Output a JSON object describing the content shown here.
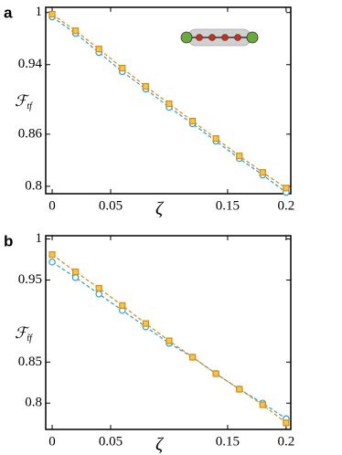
{
  "chart_data": [
    {
      "type": "line",
      "panel_label": "a",
      "ylabel": "ℱ",
      "ylabel_subscript": "tf",
      "xlabel": "ζ",
      "x": [
        0,
        0.02,
        0.04,
        0.06,
        0.08,
        0.1,
        0.12,
        0.14,
        0.16,
        0.18,
        0.2
      ],
      "series": [
        {
          "color": "#2a9fd6",
          "marker": "circle",
          "values": [
            0.995,
            0.976,
            0.954,
            0.932,
            0.912,
            0.891,
            0.872,
            0.852,
            0.832,
            0.813,
            0.793
          ]
        },
        {
          "color": "#d98c0c",
          "marker": "square",
          "values": [
            0.998,
            0.979,
            0.958,
            0.936,
            0.915,
            0.895,
            0.875,
            0.855,
            0.835,
            0.816,
            0.798
          ]
        }
      ],
      "xlim": [
        -0.0055,
        0.204
      ],
      "xticks": [
        0,
        0.05,
        0.15,
        0.2
      ],
      "ylim": [
        0.7915,
        1.006
      ],
      "yticks": [
        1,
        0.94,
        0.86,
        0.8
      ]
    },
    {
      "type": "line",
      "panel_label": "b",
      "ylabel": "ℱ",
      "ylabel_subscript": "t̃f",
      "xlabel": "ζ",
      "x": [
        0,
        0.02,
        0.04,
        0.06,
        0.08,
        0.1,
        0.12,
        0.14,
        0.16,
        0.18,
        0.2
      ],
      "series": [
        {
          "color": "#2a9fd6",
          "marker": "circle",
          "values": [
            0.972,
            0.953,
            0.933,
            0.913,
            0.893,
            0.873,
            0.856,
            0.836,
            0.817,
            0.8,
            0.781
          ]
        },
        {
          "color": "#d98c0c",
          "marker": "square",
          "values": [
            0.981,
            0.96,
            0.94,
            0.919,
            0.897,
            0.876,
            0.856,
            0.836,
            0.817,
            0.798,
            0.776
          ]
        }
      ],
      "xlim": [
        -0.0055,
        0.204
      ],
      "xticks": [
        0,
        0.05,
        0.15,
        0.2
      ],
      "ylim": [
        0.768,
        1.004
      ],
      "yticks": [
        1,
        0.95,
        0.85,
        0.8
      ]
    }
  ]
}
